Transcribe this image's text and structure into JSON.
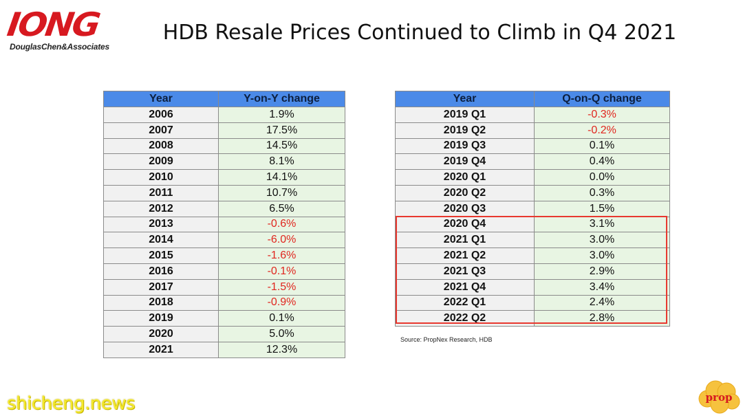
{
  "logo": {
    "mark": "IONG",
    "tagline": "DouglasChen&Associates"
  },
  "title": "HDB Resale Prices Continued to Climb in Q4 2021",
  "left_table": {
    "headers": [
      "Year",
      "Y-on-Y change"
    ],
    "rows": [
      {
        "key": "2006",
        "value": "1.9%",
        "negative": false
      },
      {
        "key": "2007",
        "value": "17.5%",
        "negative": false
      },
      {
        "key": "2008",
        "value": "14.5%",
        "negative": false
      },
      {
        "key": "2009",
        "value": "8.1%",
        "negative": false
      },
      {
        "key": "2010",
        "value": "14.1%",
        "negative": false
      },
      {
        "key": "2011",
        "value": "10.7%",
        "negative": false
      },
      {
        "key": "2012",
        "value": "6.5%",
        "negative": false
      },
      {
        "key": "2013",
        "value": "-0.6%",
        "negative": true
      },
      {
        "key": "2014",
        "value": "-6.0%",
        "negative": true
      },
      {
        "key": "2015",
        "value": "-1.6%",
        "negative": true
      },
      {
        "key": "2016",
        "value": "-0.1%",
        "negative": true
      },
      {
        "key": "2017",
        "value": "-1.5%",
        "negative": true
      },
      {
        "key": "2018",
        "value": "-0.9%",
        "negative": true
      },
      {
        "key": "2019",
        "value": "0.1%",
        "negative": false
      },
      {
        "key": "2020",
        "value": "5.0%",
        "negative": false
      },
      {
        "key": "2021",
        "value": "12.3%",
        "negative": false
      }
    ]
  },
  "right_table": {
    "headers": [
      "Year",
      "Q-on-Q change"
    ],
    "rows": [
      {
        "key": "2019 Q1",
        "value": "-0.3%",
        "negative": true
      },
      {
        "key": "2019 Q2",
        "value": "-0.2%",
        "negative": true
      },
      {
        "key": "2019 Q3",
        "value": "0.1%",
        "negative": false
      },
      {
        "key": "2019 Q4",
        "value": "0.4%",
        "negative": false
      },
      {
        "key": "2020 Q1",
        "value": "0.0%",
        "negative": false
      },
      {
        "key": "2020 Q2",
        "value": "0.3%",
        "negative": false
      },
      {
        "key": "2020 Q3",
        "value": "1.5%",
        "negative": false
      },
      {
        "key": "2020 Q4",
        "value": "3.1%",
        "negative": false
      },
      {
        "key": "2021 Q1",
        "value": "3.0%",
        "negative": false
      },
      {
        "key": "2021 Q2",
        "value": "3.0%",
        "negative": false
      },
      {
        "key": "2021 Q3",
        "value": "2.9%",
        "negative": false
      },
      {
        "key": "2021 Q4",
        "value": "3.4%",
        "negative": false
      },
      {
        "key": "2022 Q1",
        "value": "2.4%",
        "negative": false
      },
      {
        "key": "2022 Q2",
        "value": "2.8%",
        "negative": false
      }
    ]
  },
  "source": "Source: PropNex Research, HDB",
  "watermark": "shicheng.news",
  "corner_logo": {
    "text": "prop"
  },
  "colors": {
    "header_blue": "#4b8ae8",
    "value_green": "#e8f5e3",
    "negative_red": "#e0261f",
    "highlight_red": "#e8382f",
    "logo_red": "#d71920",
    "watermark_yellow": "#f5ea2c"
  }
}
